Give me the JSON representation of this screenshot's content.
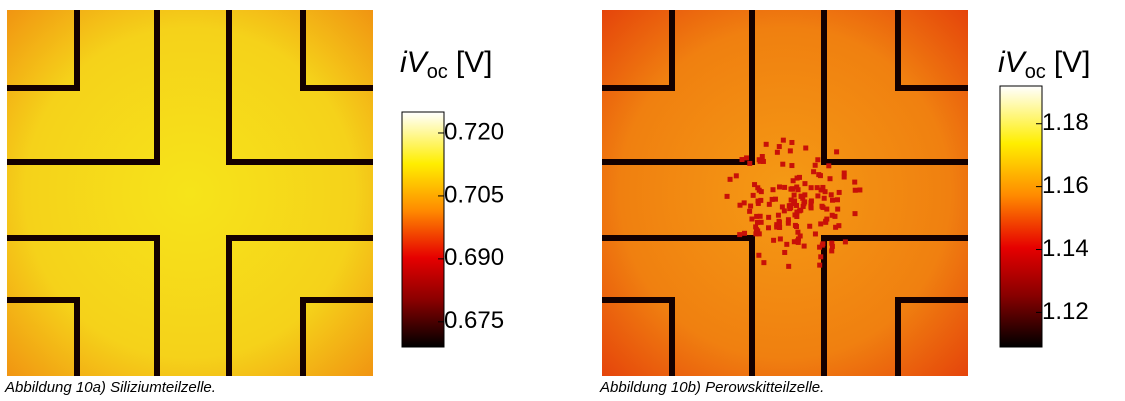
{
  "figures": [
    {
      "caption": "Abbildung 10a) Siliziumteilzelle.",
      "colorbar": {
        "symbol": "iV",
        "subscript": "oc",
        "unit": "[V]",
        "lim": [
          0.669,
          0.725
        ],
        "ticks": [
          {
            "value": 0.72,
            "label": "0.720"
          },
          {
            "value": 0.705,
            "label": "0.705"
          },
          {
            "value": 0.69,
            "label": "0.690"
          },
          {
            "value": 0.675,
            "label": "0.675"
          }
        ]
      }
    },
    {
      "caption": "Abbildung 10b) Perowskitteilzelle.",
      "colorbar": {
        "symbol": "iV",
        "subscript": "oc",
        "unit": "[V]",
        "lim": [
          1.109,
          1.192
        ],
        "ticks": [
          1.18,
          1.16,
          1.14,
          1.12
        ]
      }
    }
  ]
}
